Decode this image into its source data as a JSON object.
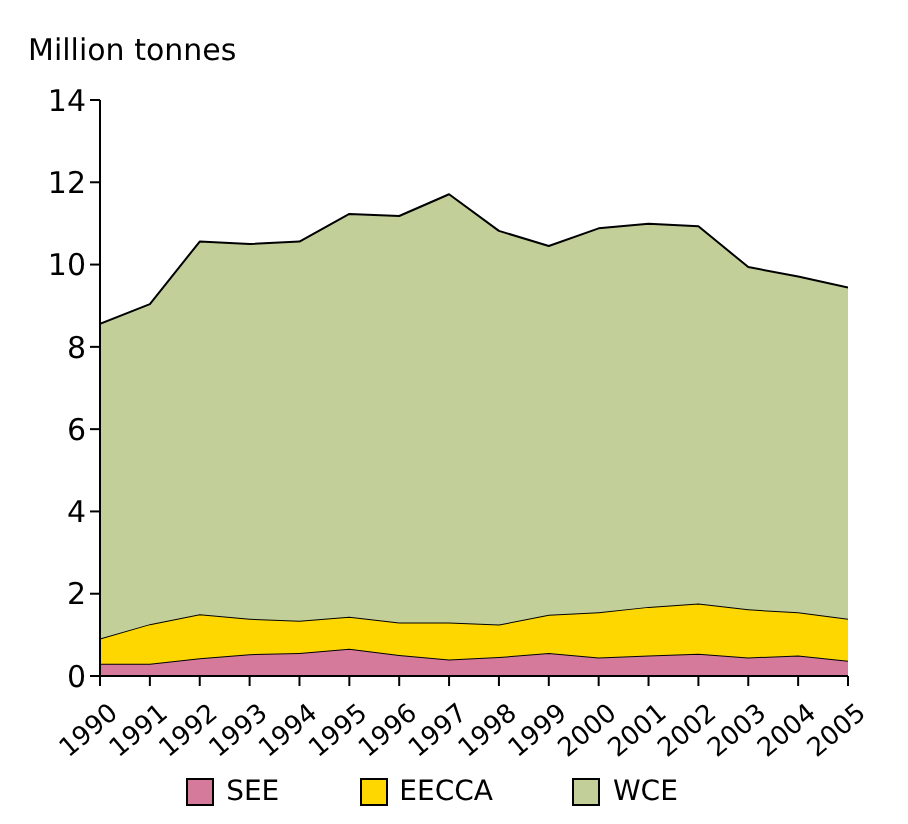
{
  "chart_data": {
    "type": "area",
    "stacked": true,
    "ylabel": "Million tonnes",
    "categories": [
      "1990",
      "1991",
      "1992",
      "1993",
      "1994",
      "1995",
      "1996",
      "1997",
      "1998",
      "1999",
      "2000",
      "2001",
      "2002",
      "2003",
      "2004",
      "2005"
    ],
    "series": [
      {
        "name": "SEE",
        "color": "#d67a9c",
        "values": [
          0.3,
          0.3,
          0.43,
          0.53,
          0.56,
          0.66,
          0.51,
          0.4,
          0.46,
          0.56,
          0.45,
          0.5,
          0.54,
          0.45,
          0.5,
          0.37
        ]
      },
      {
        "name": "EECCA",
        "color": "#ffd700",
        "values": [
          0.61,
          0.96,
          1.07,
          0.86,
          0.78,
          0.78,
          0.79,
          0.9,
          0.79,
          0.93,
          1.1,
          1.18,
          1.22,
          1.17,
          1.05,
          1.02
        ]
      },
      {
        "name": "WCE",
        "color": "#c2cf98",
        "values": [
          7.65,
          7.78,
          9.06,
          9.11,
          9.22,
          9.79,
          9.88,
          10.41,
          9.57,
          8.96,
          9.33,
          9.31,
          9.17,
          8.32,
          8.16,
          8.05
        ]
      }
    ],
    "ylim": [
      0,
      14
    ],
    "yticks": [
      0,
      2,
      4,
      6,
      8,
      10,
      12,
      14
    ],
    "grid": false,
    "legend": "bottom"
  }
}
